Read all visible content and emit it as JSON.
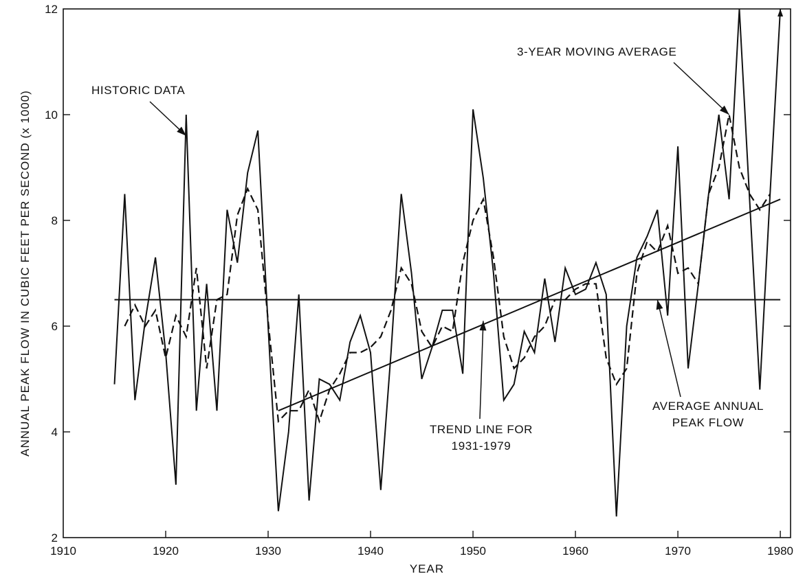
{
  "chart_data": {
    "type": "line",
    "xlabel": "YEAR",
    "ylabel": "ANNUAL PEAK FLOW IN CUBIC FEET PER SECOND (x 1000)",
    "xlim": [
      1910,
      1981
    ],
    "ylim": [
      2,
      12
    ],
    "xticks": [
      1910,
      1920,
      1930,
      1940,
      1950,
      1960,
      1970,
      1980
    ],
    "yticks": [
      2,
      4,
      6,
      8,
      10,
      12
    ],
    "xtick_labels": [
      "1910",
      "1920",
      "1930",
      "1940",
      "1950",
      "1960",
      "1970",
      "1980"
    ],
    "ytick_labels": [
      "2",
      "4",
      "6",
      "8",
      "10",
      "12"
    ],
    "grid": false,
    "legend": "none",
    "series": [
      {
        "name": "HISTORIC DATA",
        "style": "solid",
        "x": [
          1915,
          1916,
          1917,
          1918,
          1919,
          1920,
          1921,
          1922,
          1923,
          1924,
          1925,
          1926,
          1927,
          1928,
          1929,
          1930,
          1931,
          1932,
          1933,
          1934,
          1935,
          1936,
          1937,
          1938,
          1939,
          1940,
          1941,
          1942,
          1943,
          1944,
          1945,
          1946,
          1947,
          1948,
          1949,
          1950,
          1951,
          1952,
          1953,
          1954,
          1955,
          1956,
          1957,
          1958,
          1959,
          1960,
          1961,
          1962,
          1963,
          1964,
          1965,
          1966,
          1967,
          1968,
          1969,
          1970,
          1971,
          1972,
          1973,
          1974,
          1975,
          1976,
          1977,
          1978,
          1979,
          1980
        ],
        "values": [
          4.9,
          8.5,
          4.6,
          6.1,
          7.3,
          5.5,
          3.0,
          10.0,
          4.4,
          6.8,
          4.4,
          8.2,
          7.2,
          8.9,
          9.7,
          6.0,
          2.5,
          4.0,
          6.6,
          2.7,
          5.0,
          4.9,
          4.6,
          5.7,
          6.2,
          5.5,
          2.9,
          5.5,
          8.5,
          7.0,
          5.0,
          5.6,
          6.3,
          6.3,
          5.1,
          10.1,
          8.8,
          7.0,
          4.6,
          4.9,
          5.9,
          5.5,
          6.9,
          5.7,
          7.1,
          6.6,
          6.7,
          7.2,
          6.6,
          2.4,
          6.0,
          7.3,
          7.7,
          8.2,
          6.2,
          9.4,
          5.2,
          6.8,
          8.5,
          10.0,
          8.4,
          12.0,
          8.4,
          4.8,
          8.5,
          12.0
        ]
      },
      {
        "name": "3-YEAR MOVING AVERAGE",
        "style": "dashed",
        "x": [
          1916,
          1917,
          1918,
          1919,
          1920,
          1921,
          1922,
          1923,
          1924,
          1925,
          1926,
          1927,
          1928,
          1929,
          1930,
          1931,
          1932,
          1933,
          1934,
          1935,
          1936,
          1937,
          1938,
          1939,
          1940,
          1941,
          1942,
          1943,
          1944,
          1945,
          1946,
          1947,
          1948,
          1949,
          1950,
          1951,
          1952,
          1953,
          1954,
          1955,
          1956,
          1957,
          1958,
          1959,
          1960,
          1961,
          1962,
          1963,
          1964,
          1965,
          1966,
          1967,
          1968,
          1969,
          1970,
          1971,
          1972,
          1973,
          1974,
          1975,
          1976,
          1977,
          1978,
          1979
        ],
        "values": [
          6.0,
          6.4,
          6.0,
          6.3,
          5.4,
          6.2,
          5.8,
          7.1,
          5.2,
          6.5,
          6.6,
          8.1,
          8.6,
          8.2,
          6.1,
          4.2,
          4.4,
          4.4,
          4.8,
          4.2,
          4.8,
          5.1,
          5.5,
          5.5,
          5.6,
          5.8,
          6.3,
          7.1,
          6.8,
          5.9,
          5.6,
          6.0,
          5.9,
          7.2,
          8.0,
          8.4,
          7.3,
          5.8,
          5.2,
          5.4,
          5.8,
          6.0,
          6.5,
          6.5,
          6.7,
          6.8,
          6.8,
          5.4,
          4.9,
          5.2,
          7.0,
          7.6,
          7.4,
          7.9,
          7.0,
          7.1,
          6.8,
          8.5,
          9.0,
          10.0,
          9.0,
          8.5,
          8.2,
          8.5
        ]
      },
      {
        "name": "TREND LINE FOR 1931-1979",
        "style": "solid",
        "x": [
          1931,
          1980
        ],
        "values": [
          4.4,
          8.4
        ]
      },
      {
        "name": "AVERAGE ANNUAL PEAK FLOW",
        "style": "solid",
        "x": [
          1915,
          1980
        ],
        "values": [
          6.5,
          6.5
        ]
      }
    ],
    "annotations": [
      {
        "lines": [
          "HISTORIC DATA"
        ],
        "points_to": [
          1922,
          9.6
        ]
      },
      {
        "lines": [
          "3-YEAR MOVING AVERAGE"
        ],
        "points_to": [
          1975,
          10.0
        ]
      },
      {
        "lines": [
          "TREND LINE FOR",
          "1931-1979"
        ],
        "points_to": [
          1951,
          6.1
        ]
      },
      {
        "lines": [
          "AVERAGE ANNUAL",
          "PEAK FLOW"
        ],
        "points_to": [
          1968,
          6.5
        ]
      }
    ]
  }
}
